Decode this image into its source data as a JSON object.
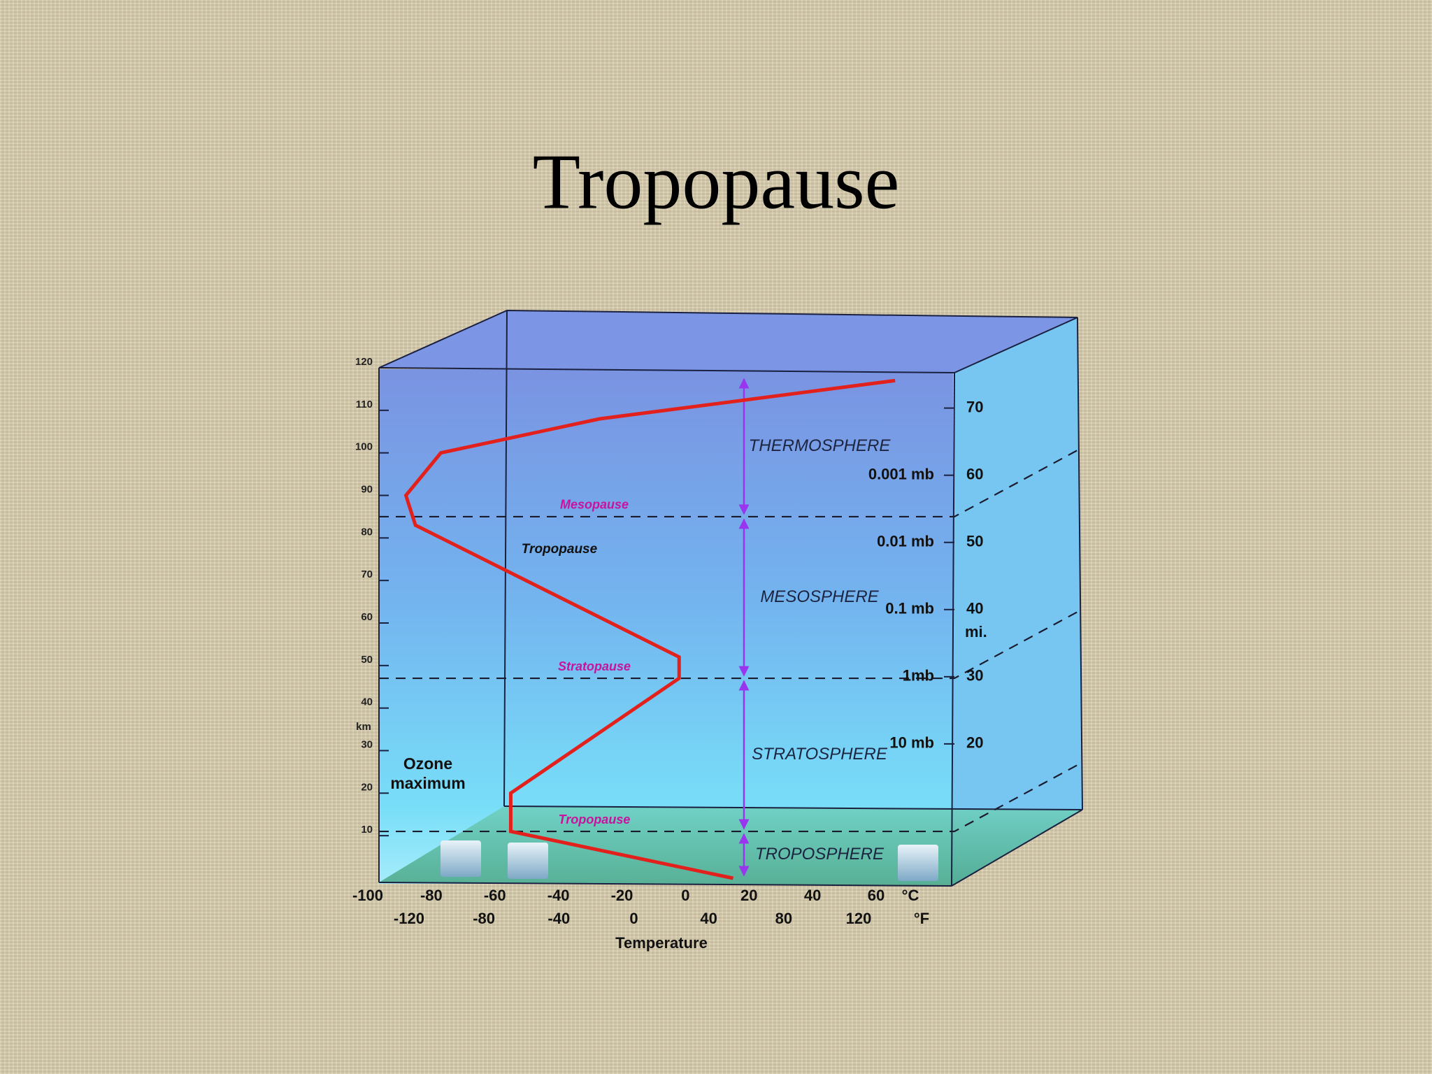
{
  "chart_data": {
    "type": "line",
    "title": "Tropopause",
    "x_label": "Temperature",
    "x_unit": "°C",
    "x2_unit": "°F",
    "y_label": "km",
    "y2_label": "mi.",
    "xlim": [
      -100,
      84
    ],
    "xticks": [
      -100,
      -80,
      -60,
      -40,
      -20,
      0,
      20,
      40,
      60
    ],
    "x2lim": [
      -142,
      170
    ],
    "x2ticks": [
      -120,
      -80,
      -40,
      0,
      40,
      80,
      120
    ],
    "ylim": [
      0,
      120
    ],
    "yticks": [
      10,
      20,
      30,
      40,
      50,
      60,
      70,
      80,
      90,
      100,
      110,
      120
    ],
    "y2lim": [
      0,
      76
    ],
    "y2ticks": [
      20,
      30,
      40,
      50,
      60,
      70
    ],
    "pressure_ticks": [
      {
        "value": 60,
        "label": "0.001 mb"
      },
      {
        "value": 50,
        "label": "0.01 mb"
      },
      {
        "value": 40,
        "label": "0.1 mb"
      },
      {
        "value": 30,
        "label": "1mb"
      },
      {
        "value": 20,
        "label": "10 mb"
      }
    ],
    "color": "#e3211c",
    "x": [
      15,
      -55,
      -55,
      -2,
      -2,
      -85,
      -88,
      -77,
      -27,
      66
    ],
    "values": [
      0,
      11,
      20,
      47,
      52,
      83,
      90,
      100,
      108,
      117
    ],
    "boundaries": [
      {
        "name": "Mesopause",
        "value": 85
      },
      {
        "name": "Stratopause",
        "value": 47
      },
      {
        "name": "Tropopause",
        "value": 11
      }
    ],
    "layers": [
      {
        "name": "THERMOSPHERE",
        "range": [
          85,
          118
        ]
      },
      {
        "name": "MESOSPHERE",
        "range": [
          47,
          85
        ]
      },
      {
        "name": "STRATOSPHERE",
        "range": [
          11,
          47
        ]
      },
      {
        "name": "TROPOSPHERE",
        "range": [
          0,
          11
        ]
      }
    ],
    "annotation": "Tropopause",
    "ozone_label": [
      "Ozone",
      "maximum"
    ]
  }
}
